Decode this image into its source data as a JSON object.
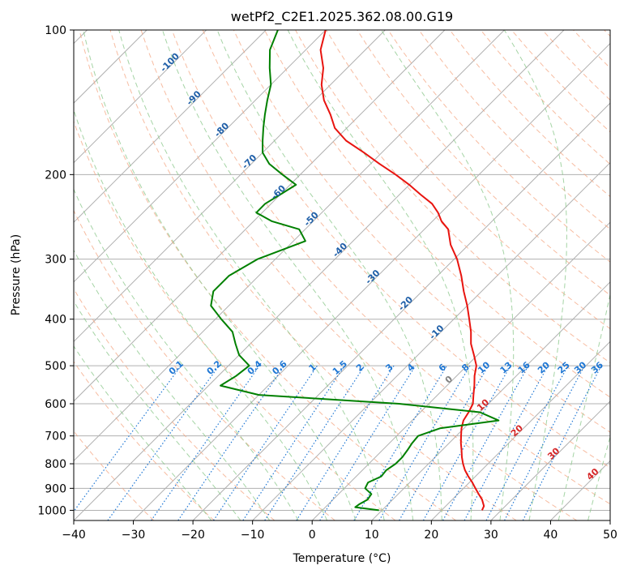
{
  "chart_data": {
    "type": "skew-t",
    "title": "wetPf2_C2E1.2025.362.08.00.G19",
    "xlabel": "Temperature (°C)",
    "ylabel": "Pressure (hPa)",
    "xlim": [
      -40,
      50
    ],
    "ylim": [
      1050,
      100
    ],
    "y_scale": "log",
    "grid": true,
    "x_ticks": [
      "−40",
      "−30",
      "−20",
      "−10",
      "0",
      "10",
      "20",
      "30",
      "40",
      "50"
    ],
    "y_ticks": [
      "100",
      "200",
      "300",
      "400",
      "500",
      "600",
      "700",
      "800",
      "900",
      "1000"
    ],
    "series": [
      {
        "color": "#e8140f",
        "points": [
          [
            26.8,
            1000
          ],
          [
            26.4,
            980
          ],
          [
            25,
            950
          ],
          [
            23.5,
            925
          ],
          [
            22,
            900
          ],
          [
            20.5,
            875
          ],
          [
            18.8,
            850
          ],
          [
            17.2,
            825
          ],
          [
            15.8,
            800
          ],
          [
            14.5,
            775
          ],
          [
            13.3,
            750
          ],
          [
            12,
            725
          ],
          [
            10.8,
            700
          ],
          [
            9.6,
            675
          ],
          [
            8.6,
            650
          ],
          [
            8.1,
            625
          ],
          [
            7.4,
            600
          ],
          [
            6,
            575
          ],
          [
            4.6,
            550
          ],
          [
            3,
            525
          ],
          [
            1.6,
            500
          ],
          [
            -0.6,
            475
          ],
          [
            -3,
            450
          ],
          [
            -5,
            425
          ],
          [
            -7.4,
            400
          ],
          [
            -10,
            375
          ],
          [
            -13,
            350
          ],
          [
            -16,
            325
          ],
          [
            -19.5,
            300
          ],
          [
            -23,
            280
          ],
          [
            -26,
            260
          ],
          [
            -28.5,
            250
          ],
          [
            -30.5,
            240
          ],
          [
            -33,
            230
          ],
          [
            -36.5,
            220
          ],
          [
            -40,
            210
          ],
          [
            -44,
            200
          ],
          [
            -48.5,
            190
          ],
          [
            -53,
            180
          ],
          [
            -58,
            170
          ],
          [
            -62,
            160
          ],
          [
            -65,
            150
          ],
          [
            -68.5,
            140
          ],
          [
            -71.5,
            130
          ],
          [
            -74,
            120
          ],
          [
            -77.5,
            110
          ],
          [
            -80,
            100
          ]
        ]
      },
      {
        "color": "#008000",
        "points": [
          [
            9.5,
            1000
          ],
          [
            5,
            985
          ],
          [
            5.2,
            970
          ],
          [
            5.8,
            950
          ],
          [
            5.5,
            925
          ],
          [
            3.5,
            900
          ],
          [
            3,
            875
          ],
          [
            4.2,
            850
          ],
          [
            4,
            825
          ],
          [
            4.5,
            800
          ],
          [
            4.5,
            775
          ],
          [
            4.2,
            750
          ],
          [
            3.8,
            725
          ],
          [
            3.6,
            700
          ],
          [
            6,
            675
          ],
          [
            14.5,
            650
          ],
          [
            10,
            625
          ],
          [
            -5,
            600
          ],
          [
            -30,
            575
          ],
          [
            -38,
            550
          ],
          [
            -37,
            525
          ],
          [
            -36.5,
            500
          ],
          [
            -40,
            475
          ],
          [
            -42.5,
            450
          ],
          [
            -45,
            425
          ],
          [
            -49,
            400
          ],
          [
            -53,
            375
          ],
          [
            -55,
            350
          ],
          [
            -55,
            325
          ],
          [
            -53,
            300
          ],
          [
            -48,
            275
          ],
          [
            -51,
            260
          ],
          [
            -57,
            250
          ],
          [
            -61,
            240
          ],
          [
            -61,
            230
          ],
          [
            -60,
            220
          ],
          [
            -59,
            210
          ],
          [
            -63,
            200
          ],
          [
            -67,
            190
          ],
          [
            -70,
            180
          ],
          [
            -72,
            170
          ],
          [
            -74,
            160
          ],
          [
            -76,
            150
          ],
          [
            -78,
            140
          ],
          [
            -80,
            130
          ],
          [
            -83,
            120
          ],
          [
            -86,
            110
          ],
          [
            -88,
            100
          ]
        ]
      }
    ],
    "isotherm_labels": [
      "-100",
      "-90",
      "-80",
      "-70",
      "-60",
      "-50",
      "-40",
      "-30",
      "-20",
      "-10"
    ],
    "dry_adiabat_labels": [
      "0",
      "10",
      "20",
      "30",
      "40"
    ],
    "mixing_ratio_labels": [
      "0.1",
      "0.2",
      "0.4",
      "0.6",
      "1",
      "1.5",
      "2",
      "3",
      "4",
      "6",
      "8",
      "10",
      "13",
      "16",
      "20",
      "25",
      "30",
      "36"
    ],
    "colors": {
      "temperature": "#e8140f",
      "dewpoint": "#008000",
      "dry_adiabat": "#f4a582",
      "moist_adiabat": "#8fc98f",
      "mixing_ratio": "#1f77d4",
      "isotherm_label": "#1f5fa8",
      "adiabat_label": "#d62728",
      "grid": "#b0b0b0"
    }
  }
}
